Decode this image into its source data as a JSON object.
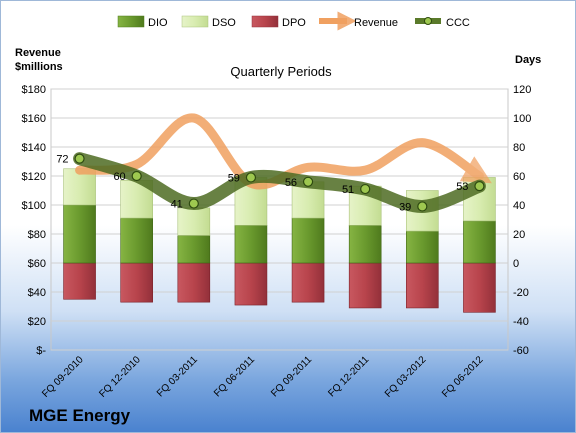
{
  "company": "MGE Energy",
  "chart_data": {
    "type": "bar",
    "title": "Quarterly Periods",
    "y_left_label_line1": "Revenue",
    "y_left_label_line2": "$millions",
    "y_right_label": "Days",
    "categories": [
      "FQ 09-2010",
      "FQ 12-2010",
      "FQ 03-2011",
      "FQ 06-2011",
      "FQ 09-2011",
      "FQ 12-2011",
      "FQ 03-2012",
      "FQ 06-2012"
    ],
    "ylim_left": [
      0,
      180
    ],
    "ylim_right": [
      -60,
      120
    ],
    "left_ticks": [
      "$-",
      "$20",
      "$40",
      "$60",
      "$80",
      "$100",
      "$120",
      "$140",
      "$160",
      "$180"
    ],
    "right_ticks": [
      "-60",
      "-40",
      "-20",
      "0",
      "20",
      "40",
      "60",
      "80",
      "100",
      "120"
    ],
    "series": [
      {
        "name": "DIO",
        "color": "#6a9a2e",
        "axis": "days",
        "values": [
          40,
          31,
          19,
          26,
          31,
          26,
          22,
          29
        ]
      },
      {
        "name": "DSO",
        "color": "#d8ecb0",
        "axis": "days",
        "values": [
          25,
          26,
          19,
          33,
          25,
          27,
          28,
          30
        ]
      },
      {
        "name": "DPO",
        "color": "#b8444c",
        "axis": "days",
        "values": [
          -25,
          -27,
          -27,
          -29,
          -27,
          -31,
          -31,
          -34
        ]
      },
      {
        "name": "Revenue",
        "color": "#f0a060",
        "axis": "revenue",
        "values": [
          124,
          128,
          160,
          115,
          126,
          124,
          143,
          120
        ]
      },
      {
        "name": "CCC",
        "color": "#5a7a2a",
        "axis": "days",
        "values": [
          72,
          60,
          41,
          59,
          56,
          51,
          39,
          53
        ]
      }
    ],
    "ccc_labels": [
      "72",
      "60",
      "41",
      "59",
      "56",
      "51",
      "39",
      "53"
    ],
    "legend_position": "top"
  }
}
